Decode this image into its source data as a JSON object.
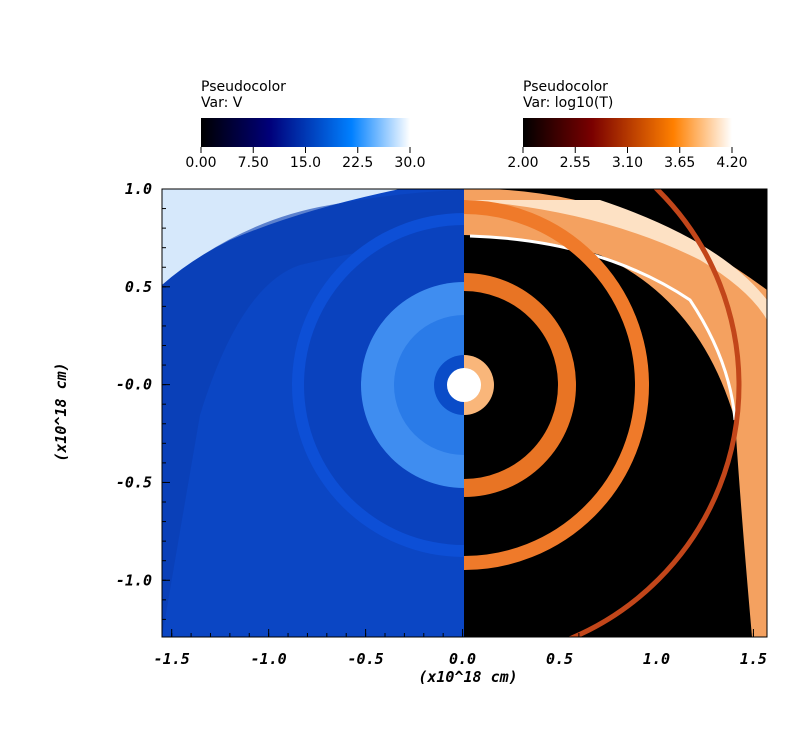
{
  "chart_data": {
    "type": "heatmap",
    "panels": [
      {
        "side": "left",
        "legend_title": "Pseudocolor",
        "variable_label": "Var: V",
        "colormap": [
          "#000000",
          "#00007a",
          "#0080ff",
          "#ffffff"
        ],
        "range": [
          0,
          30
        ],
        "ticks": [
          "0.00",
          "7.50",
          "15.0",
          "22.5",
          "30.0"
        ]
      },
      {
        "side": "right",
        "legend_title": "Pseudocolor",
        "variable_label": "Var: log10(T)",
        "colormap": [
          "#000000",
          "#7a0000",
          "#ff8000",
          "#ffffff"
        ],
        "range": [
          2.0,
          4.2
        ],
        "ticks": [
          "2.00",
          "2.55",
          "3.10",
          "3.65",
          "4.20"
        ]
      }
    ],
    "xlabel": "(x10^18 cm)",
    "ylabel": "(x10^18 cm)",
    "xlim": [
      -1.55,
      1.57
    ],
    "ylim": [
      -1.29,
      1.0
    ],
    "xticks": [
      "-1.5",
      "-1.0",
      "-0.5",
      "0.0",
      "0.5",
      "1.0",
      "1.5"
    ],
    "xtick_values": [
      -1.5,
      -1.0,
      -0.5,
      0.0,
      0.5,
      1.0,
      1.5
    ],
    "yticks": [
      "1.0",
      "0.5",
      "-0.0",
      "-0.5",
      "-1.0"
    ],
    "ytick_values": [
      1.0,
      0.5,
      0.0,
      -0.5,
      -1.0
    ]
  }
}
